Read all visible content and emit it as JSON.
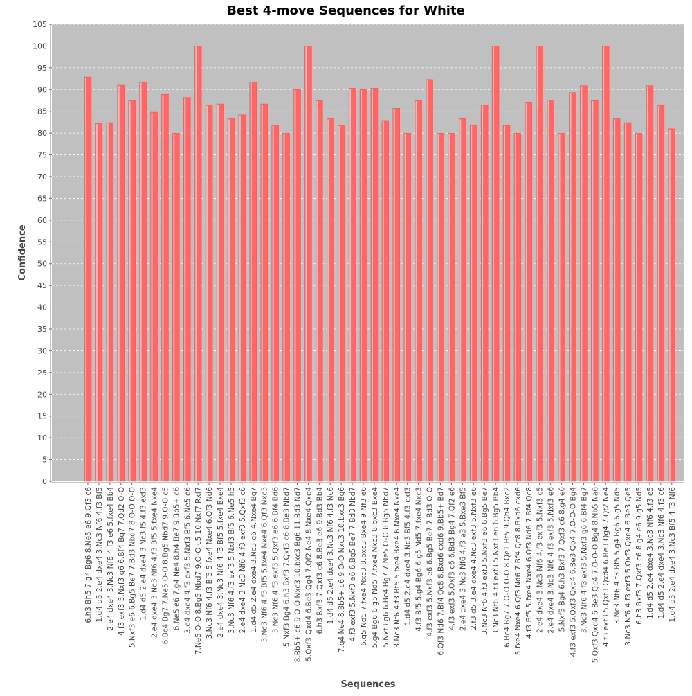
{
  "chart_data": {
    "type": "bar",
    "title": "Best 4-move Sequences for White",
    "xlabel": "Sequences",
    "ylabel": "Confidence",
    "ylim": [
      0,
      105
    ],
    "yticks": [
      0,
      5,
      10,
      15,
      20,
      25,
      30,
      35,
      40,
      45,
      50,
      55,
      60,
      65,
      70,
      75,
      80,
      85,
      90,
      95,
      100,
      105
    ],
    "grid": true,
    "legend": "none",
    "colors": {
      "plot_bg": "#c0c0c0",
      "bar": "#ff6666",
      "bar_highlight": "#ffb3b3",
      "grid": "#ffffff"
    },
    "categories": [
      "6.h3 Bh5 7.g4 Bg6 8.Ne5 e6 9.Qf3 c6",
      "1.d4 d5 2.e4 dxe4 3.Nc3 Nf6 4.f3 Bf5",
      "2.e4 dxe4 3.Nc3 Nf6 4.f3 e6 5.fxe4 Bb4",
      "4.f3 exf3 5.Nxf3 g6 6.Bf4 Bg7 7.Qd2 O-O",
      "5.Nxf3 e6 6.Bg5 Be7 7.Bd3 Nbd7 8.O-O O-O",
      "1.d4 d5 2.e4 dxe4 3.Nc3 f5 4.f3 exf3",
      "2.e4 dxe4 3.Nc3 Nf6 4.f3 Bf5 5.fxe4 Nxe4",
      "6.Bc4 Bg7 7.Ne5 O-O 8.Bg5 Nbd7 9.O-O c5",
      "6.Ne5 e6 7.g4 Ne4 8.h4 Be7 9.Bb5+ c6",
      "3.e4 dxe4 4.f3 exf3 5.Nxf3 Bf5 6.Ne5 e6",
      "7.Ne5 O-O 8.Bg5 Nbd7 9.O-O c5 10.Nxf7 Rxf7",
      "3.Nc3 Nf6 4.f3 Bf5 5.fxe4 Nxe4 6.Qf3 Nd6",
      "2.e4 dxe4 3.Nc3 Nf6 4.f3 Bf5 5.fxe4 Bxe4",
      "3.Nc3 Nf6 4.f3 exf3 5.Nxf3 Bf5 6.Ne5 h5",
      "2.e4 dxe4 3.Nc3 Nf6 4.f3 exf3 5.Qxf3 c6",
      "1.d4 d5 2.e4 dxe4 3.Nc3 g6 4.Nxe4 Bg7",
      "3.Nc3 Nf6 4.f3 Bf5 5.fxe4 Nxe4 6.Qf3 Nxc3",
      "3.Nc3 Nf6 4.f3 exf3 5.Qxf3 e6 6.Bf4 Bd6",
      "5.Nxf3 Bg4 6.h3 Bxf3 7.Qxf3 c6 8.Be3 Nbd7",
      "8.Bb5+ c6 9.O-O Nxc3 10.bxc3 Bg6 11.Bd3 Nd7",
      "5.Qxf3 Qxd4 6.Be3 Qg4 7.Qf2 Ne4 8.Nxe4 Qxe4",
      "6.h3 Bxf3 7.Qxf3 c6 8.Be3 e6 9.Bd3 Bb4",
      "1.d4 d5 2.e4 dxe4 3.Nc3 Nf6 4.f3 Nc6",
      "7.g4 Ne4 8.Bb5+ c6 9.O-O Nxc3 10.bxc3 Bg6",
      "4.f3 exf3 5.Nxf3 e6 6.Bg5 Be7 7.Bd3 Nbd7",
      "6.g5 Nd5 7.fxe4 Nxc3 8.bxc3 Bxe4 9.Nf3 e6",
      "5.g4 Bg6 6.g5 Nd5 7.fxe4 Nxc3 8.bxc3 Bxe4",
      "5.Nxf3 g6 6.Bc4 Bg7 7.Ne5 O-O 8.Bg5 Nbd7",
      "3.Nc3 Nf6 4.f3 Bf5 5.fxe4 Bxe4 6.Nxe4 Nxe4",
      "1.d4 d5 2.e4 dxe4 3.Nc3 Bf5 4.f3 exf3",
      "4.f3 Bf5 5.g4 Bg6 6.g5 Nd5 7.fxe4 Nxc3",
      "4.f3 exf3 5.Nxf3 e6 6.Bg5 Be7 7.Bd3 O-O",
      "6.Qf3 Nd6 7.Bf4 Qc8 8.Bxd6 cxd6 9.Bb5+ Bd7",
      "4.f3 exf3 5.Qxf3 c6 6.Bd3 Bg4 7.Qf2 e6",
      "2.e4 dxe4 3.Nc3 Nf6 4.f3 e3 5.Bxe3 Bf5",
      "2.f3 d5 3.e4 dxe4 4.Nc3 exf3 5.Nxf3 e6",
      "3.Nc3 Nf6 4.f3 exf3 5.Nxf3 e6 6.Bg5 Be7",
      "3.Nc3 Nf6 4.f3 exf3 5.Nxf3 e6 6.Bg5 Bb4",
      "6.Bc4 Bg7 7.O-O O-O 8.Qe1 Bf5 9.Qh4 Bxc2",
      "5.fxe4 Nxe4 6.Qf3 Nd6 7.Bf4 Qc8 8.Bxd6 cxd6",
      "4.f3 Bf5 5.fxe4 Nxe4 6.Qf3 Nd6 7.Bf4 Qc8",
      "2.e4 dxe4 3.Nc3 Nf6 4.f3 exf3 5.Nxf3 c5",
      "2.e4 dxe4 3.Nc3 Nf6 4.f3 exf3 5.Nxf3 e6",
      "5.Nxf3 Bg4 6.h3 Bxf3 7.Qxf3 c6 8.g4 e6",
      "4.f3 exf3 5.Qxf3 Qxd4 6.Be3 Qb4 7.O-O-O Bg4",
      "3.Nc3 Nf6 4.f3 exf3 5.Nxf3 g6 6.Bf4 Bg7",
      "5.Qxf3 Qxd4 6.Be3 Qb4 7.O-O-O Bg4 8.Nb5 Na6",
      "4.f3 exf3 5.Qxf3 Qxd4 6.Be3 Qg4 7.Qf2 Ne4",
      "3.Nc3 Nf6 4.f3 Bf5 5.g4 Bg6 6.g5 Nd5",
      "3.Nc3 Nf6 4.f3 exf3 5.Qxf3 Qxd4 6.Be3 Qe5",
      "6.h3 Bxf3 7.Qxf3 c6 8.g4 e6 9.g5 Nd5",
      "1.d4 d5 2.e4 dxe4 3.Nc3 Nf6 4.f3 e5",
      "1.d4 d5 2.e4 dxe4 3.Nc3 Nf6 4.f3 c6",
      "1.d4 d5 2.e4 dxe4 3.Nc3 Bf5 4.f3 Nf6"
    ],
    "values": [
      92.9,
      82.2,
      82.4,
      91.0,
      87.5,
      91.7,
      84.8,
      88.9,
      80.0,
      88.2,
      100.0,
      86.4,
      86.7,
      83.3,
      84.2,
      91.7,
      86.7,
      81.8,
      80.0,
      90.0,
      100.0,
      87.5,
      83.3,
      81.8,
      90.3,
      90.0,
      90.3,
      82.9,
      85.7,
      80.0,
      87.5,
      92.3,
      80.0,
      80.0,
      83.3,
      81.8,
      86.5,
      100.0,
      81.8,
      80.0,
      87.0,
      100.0,
      87.6,
      80.0,
      89.3,
      90.9,
      87.5,
      100.0,
      83.3,
      82.4,
      80.0,
      90.9,
      86.4,
      81.0
    ]
  }
}
